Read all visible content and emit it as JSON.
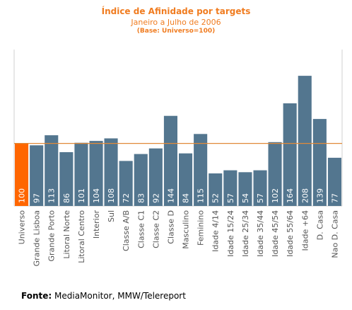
{
  "chart_data": {
    "type": "bar",
    "title": "Índice de Afinidade por targets",
    "subtitle": "Janeiro a Julho de 2006",
    "note": "(Base: Universo=100)",
    "categories": [
      "Universo",
      "Grande Lisboa",
      "Grande Porto",
      "Litoral Norte",
      "Litoral Centro",
      "Interior",
      "Sul",
      "Classe A/B",
      "Classe C1",
      "Classe C2",
      "Classe D",
      "Masculino",
      "Feminino",
      "Idade 4/14",
      "Idade 15/24",
      "Idade 25/34",
      "Idade 35/44",
      "Idade 45/54",
      "Idade 55/64",
      "Idade +64",
      "D. Casa",
      "Nao D. Casa"
    ],
    "values": [
      100,
      97,
      113,
      86,
      101,
      104,
      108,
      72,
      83,
      92,
      144,
      84,
      115,
      52,
      57,
      54,
      57,
      102,
      164,
      208,
      139,
      77
    ],
    "ylim": [
      0,
      250
    ],
    "reference_line": 100,
    "highlight_category": "Universo",
    "colors": {
      "bar": "#53768f",
      "highlight": "#ff6600",
      "reference": "#e08a3a",
      "title": "#f07c20",
      "axis": "#d2d2d2"
    },
    "grid": false,
    "legend": "none"
  },
  "source": {
    "label": "Fonte:",
    "text": "MediaMonitor, MMW/Telereport"
  }
}
